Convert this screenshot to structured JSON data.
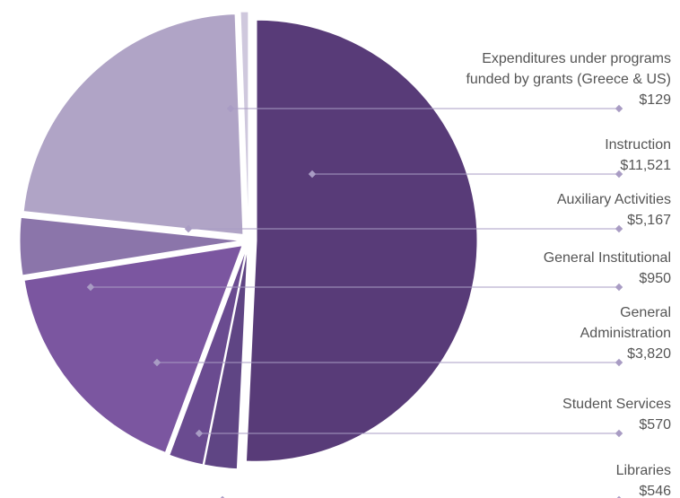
{
  "chart_data": {
    "type": "pie",
    "categories": [
      "Expenditures under programs\nfunded by grants (Greece & US)",
      "Instruction",
      "Auxiliary Activities",
      "General Institutional",
      "General\nAdministration",
      "Student Services",
      "Libraries"
    ],
    "values": [
      129,
      11521,
      5167,
      950,
      3820,
      570,
      546
    ],
    "value_labels": [
      "$129",
      "$11,521",
      "$5,167",
      "$950",
      "$3,820",
      "$570",
      "$546"
    ],
    "colors": [
      "#cfc8dd",
      "#583b78",
      "#b0a4c6",
      "#8b75aa",
      "#7b56a0",
      "#6a4b90",
      "#5f4584"
    ]
  }
}
